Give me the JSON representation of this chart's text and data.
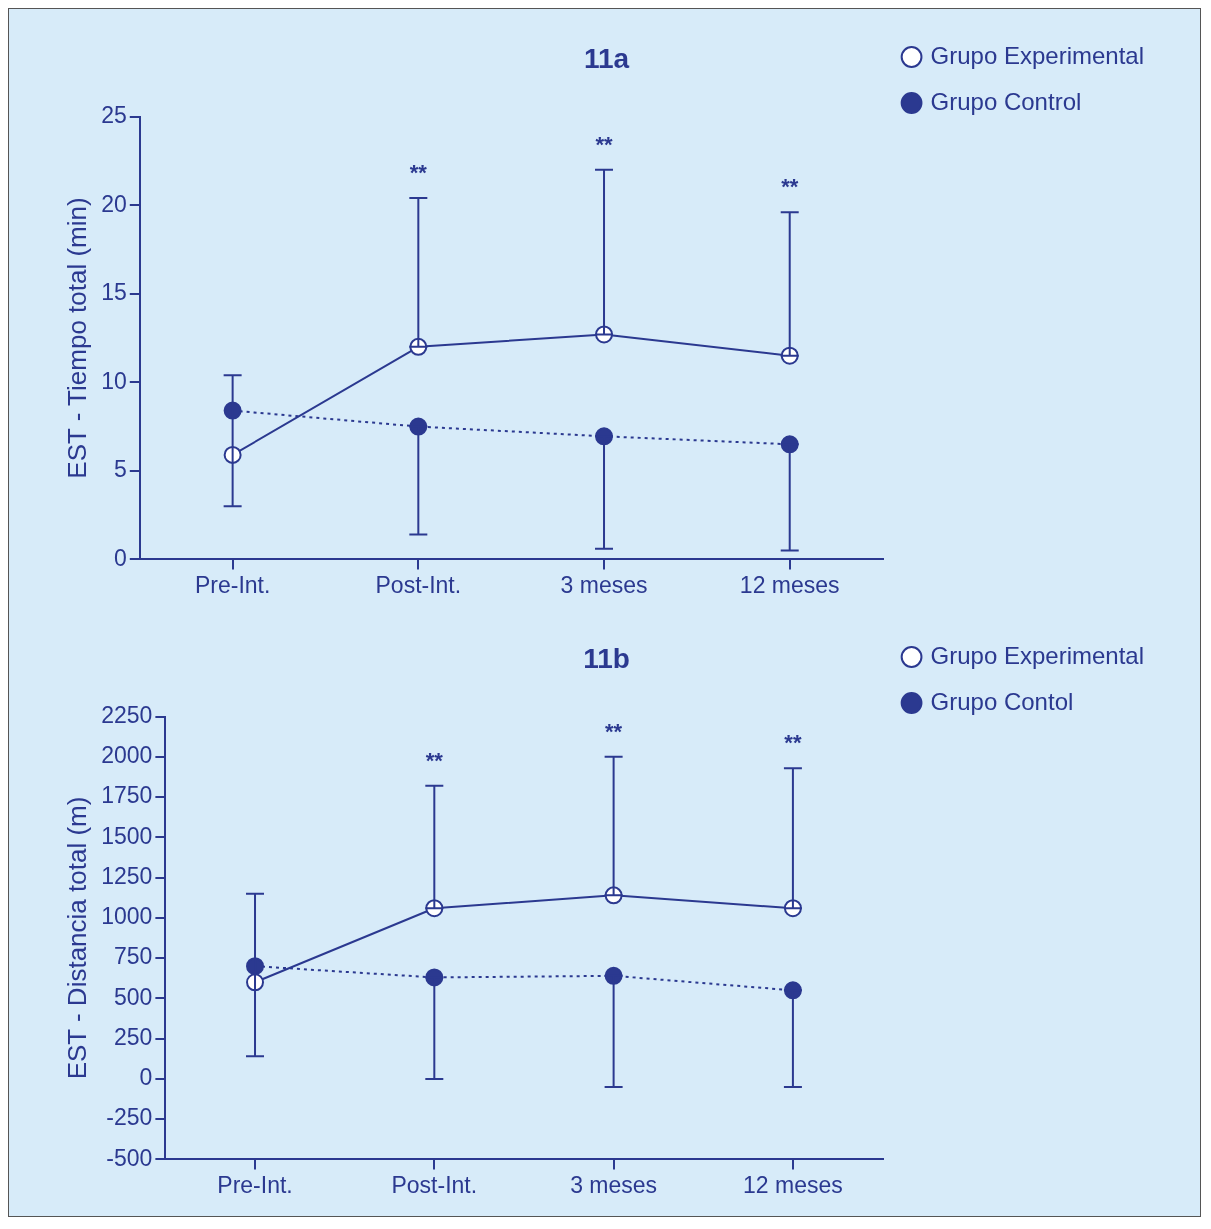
{
  "chart_data": [
    {
      "type": "line",
      "title": "11a",
      "ylabel": "EST - Tiempo total (min)",
      "categories": [
        "Pre-Int.",
        "Post-Int.",
        "3 meses",
        "12 meses"
      ],
      "ylim": [
        0,
        25
      ],
      "yticks": [
        0,
        5,
        10,
        15,
        20,
        25
      ],
      "grid": false,
      "legend": "top right",
      "marker": "circle",
      "series": [
        {
          "name": "Grupo Experimental",
          "color": "#2b3990",
          "line_style": "solid",
          "values": [
            5.9,
            12.0,
            12.7,
            11.5
          ],
          "errors": [
            [
              3.0,
              10.4
            ],
            [
              12.0,
              20.4
            ],
            [
              12.7,
              22.0
            ],
            [
              11.5,
              19.6
            ]
          ]
        },
        {
          "name": "Grupo Control",
          "color": "#2b3990",
          "line_style": "dotted",
          "values": [
            8.4,
            7.5,
            6.95,
            6.5
          ],
          "errors": [
            null,
            [
              1.4,
              7.5
            ],
            [
              0.6,
              6.95
            ],
            [
              0.5,
              6.5
            ]
          ]
        }
      ],
      "annotations": [
        "**",
        "**",
        "**"
      ]
    },
    {
      "type": "line",
      "title": "11b",
      "ylabel": "EST - Distancia total (m)",
      "categories": [
        "Pre-Int.",
        "Post-Int.",
        "3 meses",
        "12 meses"
      ],
      "ylim": [
        -500,
        2250
      ],
      "yticks": [
        -500,
        -250,
        0,
        250,
        500,
        750,
        1000,
        1250,
        1500,
        1750,
        2000,
        2250
      ],
      "grid": false,
      "legend": "top right",
      "marker": "circle",
      "series": [
        {
          "name": "Grupo Experimental",
          "color": "#2b3990",
          "line_style": "solid",
          "values": [
            600,
            1060,
            1140,
            1060
          ],
          "errors": [
            [
              140,
              1150
            ],
            [
              1060,
              1820
            ],
            [
              1140,
              2000
            ],
            [
              1060,
              1930
            ]
          ]
        },
        {
          "name": "Grupo Contol",
          "color": "#2b3990",
          "line_style": "dotted",
          "values": [
            700,
            630,
            640,
            550
          ],
          "errors": [
            null,
            [
              0,
              630
            ],
            [
              -50,
              640
            ],
            [
              -50,
              550
            ]
          ]
        }
      ],
      "annotations": [
        "**",
        "**",
        "**"
      ]
    }
  ]
}
